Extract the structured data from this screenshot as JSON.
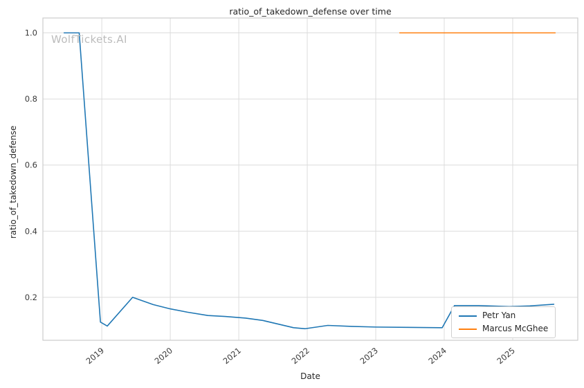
{
  "watermark": "WolfTickets.AI",
  "chart_data": {
    "type": "line",
    "title": "ratio_of_takedown_defense over time",
    "xlabel": "Date",
    "ylabel": "ratio_of_takedown_defense",
    "xlim": [
      2018.14,
      2025.95
    ],
    "ylim": [
      0.07,
      1.045
    ],
    "xticks": [
      "2019",
      "2020",
      "2021",
      "2022",
      "2023",
      "2024",
      "2025"
    ],
    "xtick_values": [
      2019,
      2020,
      2021,
      2022,
      2023,
      2024,
      2025
    ],
    "yticks": [
      "0.2",
      "0.4",
      "0.6",
      "0.8",
      "1.0"
    ],
    "ytick_values": [
      0.2,
      0.4,
      0.6,
      0.8,
      1.0
    ],
    "grid": true,
    "legend_position": "lower right",
    "series": [
      {
        "name": "Petr Yan",
        "color": "#1f77b4",
        "points": [
          [
            2018.45,
            1.0
          ],
          [
            2018.67,
            1.0
          ],
          [
            2018.98,
            0.125
          ],
          [
            2019.08,
            0.113
          ],
          [
            2019.45,
            0.2
          ],
          [
            2019.75,
            0.178
          ],
          [
            2020.0,
            0.165
          ],
          [
            2020.25,
            0.155
          ],
          [
            2020.55,
            0.145
          ],
          [
            2020.8,
            0.142
          ],
          [
            2021.1,
            0.137
          ],
          [
            2021.35,
            0.13
          ],
          [
            2021.8,
            0.108
          ],
          [
            2021.97,
            0.105
          ],
          [
            2022.3,
            0.115
          ],
          [
            2022.65,
            0.112
          ],
          [
            2023.0,
            0.11
          ],
          [
            2023.45,
            0.109
          ],
          [
            2023.97,
            0.108
          ],
          [
            2024.15,
            0.175
          ],
          [
            2024.5,
            0.175
          ],
          [
            2024.95,
            0.172
          ],
          [
            2025.25,
            0.174
          ],
          [
            2025.6,
            0.179
          ]
        ]
      },
      {
        "name": "Marcus McGhee",
        "color": "#ff7f0e",
        "points": [
          [
            2023.35,
            1.0
          ],
          [
            2025.62,
            1.0
          ]
        ]
      }
    ],
    "colors": {
      "grid": "#dcdcdc",
      "spine": "#cccccc",
      "tick_text": "#3a3a3a",
      "title_text": "#262626"
    }
  }
}
